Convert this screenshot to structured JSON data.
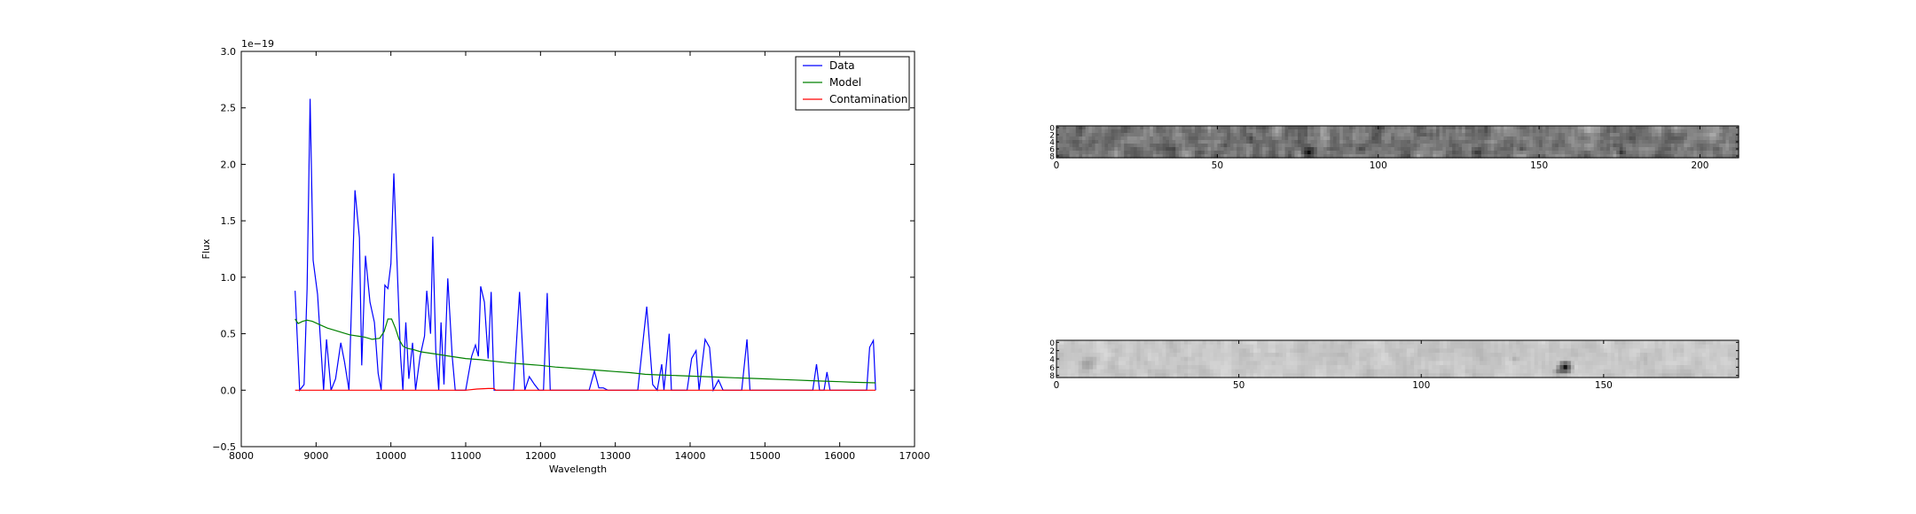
{
  "chart_data": [
    {
      "type": "line",
      "title": "",
      "xlabel": "Wavelength",
      "ylabel": "Flux",
      "xlim": [
        8000,
        17000
      ],
      "ylim": [
        -0.5,
        3.0
      ],
      "y_offset_label": "1e−19",
      "x_ticks": [
        8000,
        9000,
        10000,
        11000,
        12000,
        13000,
        14000,
        15000,
        16000,
        17000
      ],
      "x_tick_labels": [
        "8000",
        "9000",
        "10000",
        "11000",
        "12000",
        "13000",
        "14000",
        "15000",
        "16000",
        "17000"
      ],
      "y_ticks": [
        -0.5,
        0.0,
        0.5,
        1.0,
        1.5,
        2.0,
        2.5,
        3.0
      ],
      "y_tick_labels": [
        "−0.5",
        "0.0",
        "0.5",
        "1.0",
        "1.5",
        "2.0",
        "2.5",
        "3.0"
      ],
      "grid": false,
      "legend_position": "top-right",
      "series": [
        {
          "name": "Data",
          "color": "#0000ff",
          "points": [
            [
              8720,
              0.88
            ],
            [
              8780,
              0.0
            ],
            [
              8840,
              0.05
            ],
            [
              8880,
              0.9
            ],
            [
              8920,
              2.58
            ],
            [
              8960,
              1.15
            ],
            [
              9020,
              0.85
            ],
            [
              9100,
              0.0
            ],
            [
              9140,
              0.45
            ],
            [
              9200,
              0.0
            ],
            [
              9260,
              0.1
            ],
            [
              9330,
              0.42
            ],
            [
              9380,
              0.25
            ],
            [
              9440,
              0.0
            ],
            [
              9520,
              1.77
            ],
            [
              9580,
              1.35
            ],
            [
              9610,
              0.22
            ],
            [
              9660,
              1.19
            ],
            [
              9720,
              0.78
            ],
            [
              9780,
              0.6
            ],
            [
              9830,
              0.15
            ],
            [
              9870,
              0.0
            ],
            [
              9920,
              0.93
            ],
            [
              9960,
              0.9
            ],
            [
              10000,
              1.12
            ],
            [
              10040,
              1.92
            ],
            [
              10090,
              0.98
            ],
            [
              10130,
              0.3
            ],
            [
              10160,
              0.0
            ],
            [
              10200,
              0.6
            ],
            [
              10240,
              0.1
            ],
            [
              10290,
              0.42
            ],
            [
              10330,
              0.0
            ],
            [
              10390,
              0.3
            ],
            [
              10450,
              0.48
            ],
            [
              10480,
              0.88
            ],
            [
              10530,
              0.5
            ],
            [
              10560,
              1.36
            ],
            [
              10600,
              0.35
            ],
            [
              10640,
              0.0
            ],
            [
              10670,
              0.6
            ],
            [
              10710,
              0.05
            ],
            [
              10760,
              0.99
            ],
            [
              10820,
              0.3
            ],
            [
              10860,
              0.0
            ],
            [
              11000,
              0.0
            ],
            [
              11080,
              0.3
            ],
            [
              11130,
              0.4
            ],
            [
              11170,
              0.3
            ],
            [
              11200,
              0.92
            ],
            [
              11250,
              0.78
            ],
            [
              11300,
              0.28
            ],
            [
              11340,
              0.87
            ],
            [
              11380,
              0.0
            ],
            [
              11640,
              0.0
            ],
            [
              11720,
              0.87
            ],
            [
              11790,
              0.0
            ],
            [
              11850,
              0.12
            ],
            [
              11920,
              0.05
            ],
            [
              11980,
              0.0
            ],
            [
              12040,
              0.0
            ],
            [
              12090,
              0.86
            ],
            [
              12130,
              0.0
            ],
            [
              12650,
              0.0
            ],
            [
              12720,
              0.17
            ],
            [
              12780,
              0.02
            ],
            [
              12840,
              0.02
            ],
            [
              12900,
              0.0
            ],
            [
              13300,
              0.0
            ],
            [
              13420,
              0.74
            ],
            [
              13500,
              0.05
            ],
            [
              13560,
              0.0
            ],
            [
              13620,
              0.23
            ],
            [
              13650,
              0.0
            ],
            [
              13720,
              0.5
            ],
            [
              13750,
              0.0
            ],
            [
              13960,
              0.0
            ],
            [
              14020,
              0.28
            ],
            [
              14080,
              0.35
            ],
            [
              14120,
              0.0
            ],
            [
              14200,
              0.45
            ],
            [
              14260,
              0.38
            ],
            [
              14310,
              0.0
            ],
            [
              14380,
              0.09
            ],
            [
              14440,
              0.0
            ],
            [
              14690,
              0.0
            ],
            [
              14760,
              0.45
            ],
            [
              14800,
              0.0
            ],
            [
              15640,
              0.0
            ],
            [
              15690,
              0.23
            ],
            [
              15730,
              0.0
            ],
            [
              15790,
              0.0
            ],
            [
              15830,
              0.16
            ],
            [
              15870,
              0.0
            ],
            [
              16360,
              0.0
            ],
            [
              16400,
              0.38
            ],
            [
              16450,
              0.44
            ],
            [
              16480,
              0.0
            ]
          ]
        },
        {
          "name": "Model",
          "color": "#008000",
          "points": [
            [
              8720,
              0.63
            ],
            [
              8760,
              0.59
            ],
            [
              8820,
              0.61
            ],
            [
              8880,
              0.62
            ],
            [
              8950,
              0.61
            ],
            [
              9050,
              0.58
            ],
            [
              9150,
              0.55
            ],
            [
              9250,
              0.53
            ],
            [
              9350,
              0.51
            ],
            [
              9450,
              0.49
            ],
            [
              9550,
              0.48
            ],
            [
              9650,
              0.47
            ],
            [
              9750,
              0.45
            ],
            [
              9850,
              0.46
            ],
            [
              9910,
              0.52
            ],
            [
              9960,
              0.63
            ],
            [
              10010,
              0.63
            ],
            [
              10060,
              0.55
            ],
            [
              10110,
              0.45
            ],
            [
              10160,
              0.39
            ],
            [
              10220,
              0.37
            ],
            [
              10300,
              0.36
            ],
            [
              10400,
              0.34
            ],
            [
              10600,
              0.32
            ],
            [
              10800,
              0.3
            ],
            [
              11000,
              0.28
            ],
            [
              11200,
              0.27
            ],
            [
              11400,
              0.255
            ],
            [
              11600,
              0.24
            ],
            [
              11800,
              0.23
            ],
            [
              12000,
              0.22
            ],
            [
              12200,
              0.205
            ],
            [
              12400,
              0.195
            ],
            [
              12600,
              0.185
            ],
            [
              12800,
              0.175
            ],
            [
              13000,
              0.165
            ],
            [
              13200,
              0.155
            ],
            [
              13400,
              0.14
            ],
            [
              13600,
              0.135
            ],
            [
              13800,
              0.13
            ],
            [
              14000,
              0.125
            ],
            [
              14200,
              0.12
            ],
            [
              14400,
              0.115
            ],
            [
              14600,
              0.11
            ],
            [
              14800,
              0.105
            ],
            [
              15000,
              0.1
            ],
            [
              15200,
              0.095
            ],
            [
              15400,
              0.09
            ],
            [
              15600,
              0.085
            ],
            [
              15800,
              0.08
            ],
            [
              16000,
              0.075
            ],
            [
              16200,
              0.07
            ],
            [
              16480,
              0.065
            ]
          ]
        },
        {
          "name": "Contamination",
          "color": "#ff0000",
          "points": [
            [
              8720,
              0.0
            ],
            [
              9500,
              0.0
            ],
            [
              10500,
              0.0
            ],
            [
              11000,
              0.0
            ],
            [
              11150,
              0.01
            ],
            [
              11300,
              0.015
            ],
            [
              11380,
              0.015
            ],
            [
              11400,
              0.0
            ],
            [
              12500,
              0.0
            ],
            [
              14000,
              0.0
            ],
            [
              15500,
              0.0
            ],
            [
              16480,
              0.0
            ]
          ]
        }
      ]
    },
    {
      "type": "heatmap",
      "title": "",
      "colormap": "gray",
      "xlim": [
        0,
        212
      ],
      "ylim": [
        9,
        0
      ],
      "x_tick_labels": [
        "0",
        "50",
        "100",
        "150",
        "200"
      ],
      "x_ticks": [
        0,
        50,
        100,
        150,
        200
      ],
      "y_tick_labels": [
        "0",
        "2",
        "4",
        "6",
        "8"
      ],
      "y_ticks": [
        0,
        2,
        4,
        6,
        8
      ]
    },
    {
      "type": "heatmap",
      "title": "",
      "colormap": "gray",
      "xlim": [
        0,
        187
      ],
      "ylim": [
        9,
        0
      ],
      "x_tick_labels": [
        "0",
        "50",
        "100",
        "150"
      ],
      "x_ticks": [
        0,
        50,
        100,
        150
      ],
      "y_tick_labels": [
        "0",
        "2",
        "4",
        "6",
        "8"
      ],
      "y_ticks": [
        0,
        2,
        4,
        6,
        8
      ]
    }
  ]
}
